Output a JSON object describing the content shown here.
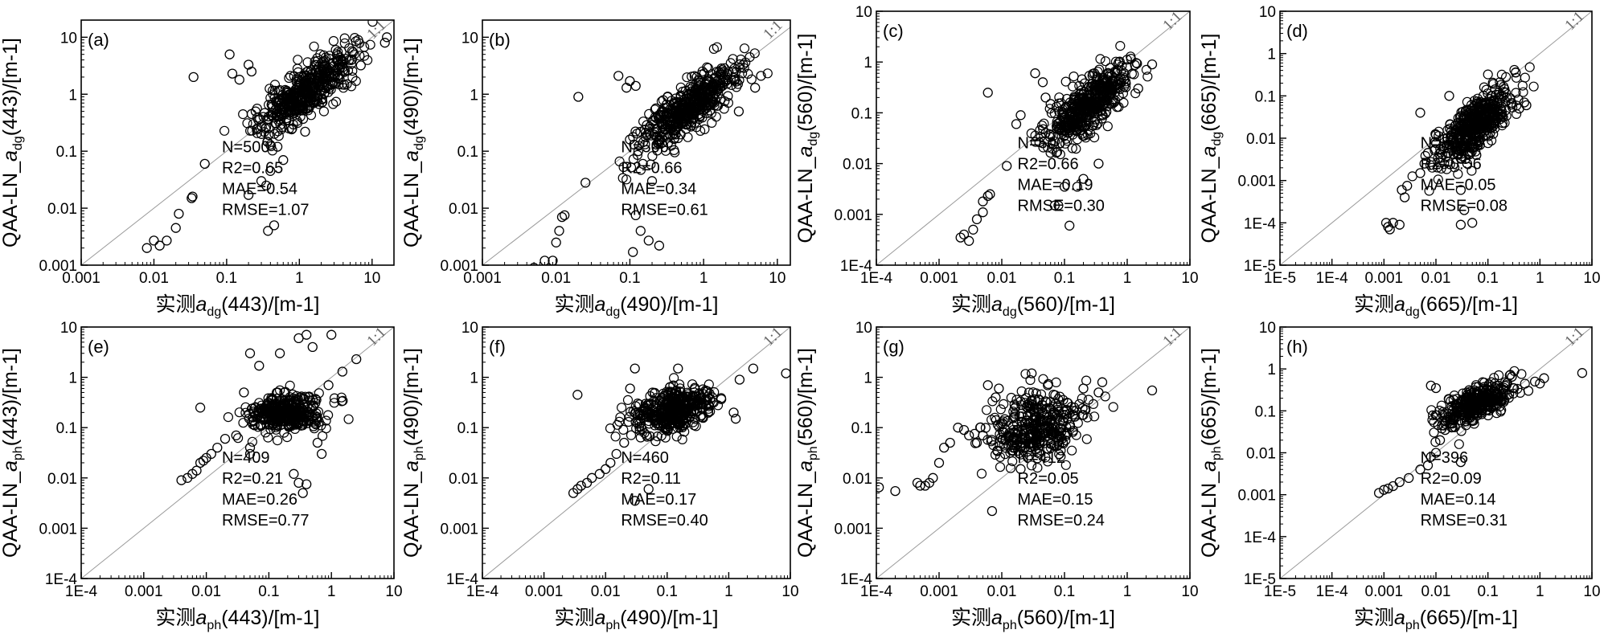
{
  "figure": {
    "n_panels": 8
  },
  "chart_data": [
    {
      "type": "scatter",
      "panel": "(a)",
      "title": "",
      "xscale": "log",
      "yscale": "log",
      "xlim": [
        0.001,
        20
      ],
      "ylim": [
        0.001,
        20
      ],
      "xticks": [
        "0.001",
        "0.01",
        "0.1",
        "1",
        "10"
      ],
      "yticks": [
        "0.001",
        "0.01",
        "0.1",
        "1",
        "10"
      ],
      "xlabel": {
        "pre": "实测",
        "sym": "a",
        "sub": "dg",
        "post": "(443)/[m-1]"
      },
      "ylabel": {
        "pre": "QAA-LN_",
        "sym": "a",
        "sub": "dg",
        "post": "(443)/[m-1]"
      },
      "reference_line": "1:1",
      "stats": [
        "N=500",
        "R2=0.65",
        "MAE=0.54",
        "RMSE=1.07"
      ],
      "cluster": {
        "center": [
          1.2,
          1.1
        ],
        "n": 460,
        "spread_x": 0.32,
        "spread_y": 0.22,
        "slope": 0.9,
        "seed": 11
      },
      "points": [
        [
          0.008,
          0.002
        ],
        [
          0.01,
          0.0027
        ],
        [
          0.012,
          0.0022
        ],
        [
          0.015,
          0.0027
        ],
        [
          0.02,
          0.0045
        ],
        [
          0.022,
          0.008
        ],
        [
          0.033,
          0.015
        ],
        [
          0.034,
          0.016
        ],
        [
          0.05,
          0.06
        ],
        [
          0.035,
          2.0
        ],
        [
          0.11,
          5.0
        ],
        [
          0.12,
          2.3
        ],
        [
          0.15,
          1.8
        ],
        [
          0.2,
          3.3
        ],
        [
          0.22,
          2.5
        ],
        [
          0.2,
          0.017
        ],
        [
          0.3,
          0.03
        ],
        [
          0.35,
          0.025
        ],
        [
          0.4,
          0.045
        ],
        [
          0.45,
          0.005
        ],
        [
          0.37,
          0.004
        ],
        [
          0.25,
          0.5
        ],
        [
          0.6,
          0.07
        ],
        [
          1.2,
          0.22
        ],
        [
          7,
          3.2
        ],
        [
          4.5,
          1.5
        ],
        [
          15,
          8
        ],
        [
          16,
          10
        ],
        [
          0.3,
          0.2
        ],
        [
          0.5,
          0.12
        ],
        [
          0.22,
          0.45
        ]
      ]
    },
    {
      "type": "scatter",
      "panel": "(b)",
      "title": "",
      "xscale": "log",
      "yscale": "log",
      "xlim": [
        0.001,
        15
      ],
      "ylim": [
        0.001,
        20
      ],
      "xticks": [
        "0.001",
        "0.01",
        "0.1",
        "1",
        "10"
      ],
      "yticks": [
        "0.001",
        "0.01",
        "0.1",
        "1",
        "10"
      ],
      "xlabel": {
        "pre": "实测",
        "sym": "a",
        "sub": "dg",
        "post": "(490)/[m-1]"
      },
      "ylabel": {
        "pre": "QAA-LN_",
        "sym": "a",
        "sub": "dg",
        "post": "(490)/[m-1]"
      },
      "reference_line": "1:1",
      "stats": [
        "N=500",
        "R2=0.66",
        "MAE=0.34",
        "RMSE=0.61"
      ],
      "cluster": {
        "center": [
          0.6,
          0.55
        ],
        "n": 460,
        "spread_x": 0.32,
        "spread_y": 0.22,
        "slope": 0.9,
        "seed": 23
      },
      "points": [
        [
          0.005,
          0.0009
        ],
        [
          0.007,
          0.0012
        ],
        [
          0.009,
          0.0012
        ],
        [
          0.01,
          0.0025
        ],
        [
          0.011,
          0.004
        ],
        [
          0.012,
          0.007
        ],
        [
          0.013,
          0.0075
        ],
        [
          0.025,
          0.028
        ],
        [
          0.02,
          0.9
        ],
        [
          0.07,
          2.1
        ],
        [
          0.09,
          1.3
        ],
        [
          0.1,
          1.7
        ],
        [
          0.12,
          1.4
        ],
        [
          0.1,
          0.16
        ],
        [
          0.12,
          0.0075
        ],
        [
          0.14,
          0.004
        ],
        [
          0.11,
          0.0017
        ],
        [
          0.18,
          0.0027
        ],
        [
          0.25,
          0.0022
        ],
        [
          0.13,
          0.1
        ],
        [
          0.15,
          0.06
        ],
        [
          0.2,
          0.03
        ],
        [
          5,
          1.3
        ],
        [
          6,
          2.1
        ],
        [
          3,
          0.5
        ]
      ]
    },
    {
      "type": "scatter",
      "panel": "(c)",
      "title": "",
      "xscale": "log",
      "yscale": "log",
      "xlim": [
        0.0001,
        10
      ],
      "ylim": [
        0.0001,
        10
      ],
      "xticks": [
        "1E-4",
        "0.001",
        "0.01",
        "0.1",
        "1",
        "10"
      ],
      "yticks": [
        "1E-4",
        "0.001",
        "0.01",
        "0.1",
        "1",
        "10"
      ],
      "xlabel": {
        "pre": "实测",
        "sym": "a",
        "sub": "dg",
        "post": "(560)/[m-1]"
      },
      "ylabel": {
        "pre": "QAA-LN_",
        "sym": "a",
        "sub": "dg",
        "post": "(560)/[m-1]"
      },
      "reference_line": "1:1",
      "stats": [
        "N=500",
        "R2=0.66",
        "MAE=0.19",
        "RMSE=0.30"
      ],
      "cluster": {
        "center": [
          0.25,
          0.15
        ],
        "n": 460,
        "spread_x": 0.32,
        "spread_y": 0.25,
        "slope": 0.9,
        "seed": 37
      },
      "points": [
        [
          0.0022,
          0.00035
        ],
        [
          0.0025,
          0.0004
        ],
        [
          0.003,
          0.0003
        ],
        [
          0.0035,
          0.0005
        ],
        [
          0.004,
          0.0008
        ],
        [
          0.005,
          0.0011
        ],
        [
          0.005,
          0.0018
        ],
        [
          0.006,
          0.0023
        ],
        [
          0.0065,
          0.0025
        ],
        [
          0.006,
          0.25
        ],
        [
          0.012,
          0.009
        ],
        [
          0.017,
          0.06
        ],
        [
          0.02,
          0.09
        ],
        [
          0.034,
          0.6
        ],
        [
          0.045,
          0.4
        ],
        [
          0.05,
          0.2
        ],
        [
          0.06,
          0.15
        ],
        [
          0.05,
          0.04
        ],
        [
          0.07,
          0.0015
        ],
        [
          0.08,
          0.0015
        ],
        [
          0.12,
          0.0006
        ],
        [
          0.1,
          0.0035
        ],
        [
          0.16,
          0.0035
        ],
        [
          0.2,
          0.005
        ],
        [
          0.35,
          0.01
        ],
        [
          0.3,
          0.6
        ],
        [
          2.5,
          0.9
        ],
        [
          1.5,
          0.3
        ]
      ]
    },
    {
      "type": "scatter",
      "panel": "(d)",
      "title": "",
      "xscale": "log",
      "yscale": "log",
      "xlim": [
        1e-05,
        10
      ],
      "ylim": [
        1e-05,
        10
      ],
      "xticks": [
        "1E-5",
        "1E-4",
        "0.001",
        "0.01",
        "0.1",
        "1",
        "10"
      ],
      "yticks": [
        "1E-5",
        "1E-4",
        "0.001",
        "0.01",
        "0.1",
        "1",
        "10"
      ],
      "xlabel": {
        "pre": "实测",
        "sym": "a",
        "sub": "dg",
        "post": "(665)/[m-1]"
      },
      "ylabel": {
        "pre": "QAA-LN_",
        "sym": "a",
        "sub": "dg",
        "post": "(665)/[m-1]"
      },
      "reference_line": "1:1",
      "stats": [
        "N=500",
        "R2=0.56",
        "MAE=0.05",
        "RMSE=0.08"
      ],
      "cluster": {
        "center": [
          0.055,
          0.02
        ],
        "n": 460,
        "spread_x": 0.35,
        "spread_y": 0.3,
        "slope": 0.9,
        "seed": 53
      },
      "points": [
        [
          0.0011,
          0.0001
        ],
        [
          0.0012,
          8e-05
        ],
        [
          0.0013,
          7e-05
        ],
        [
          0.0015,
          0.0001
        ],
        [
          0.002,
          9e-05
        ],
        [
          0.0022,
          0.0006
        ],
        [
          0.0025,
          0.0004
        ],
        [
          0.0028,
          0.00075
        ],
        [
          0.005,
          0.0015
        ],
        [
          0.006,
          0.0025
        ],
        [
          0.005,
          0.04
        ],
        [
          0.007,
          0.0045
        ],
        [
          0.01,
          0.012
        ],
        [
          0.018,
          0.1
        ],
        [
          0.03,
          0.0006
        ],
        [
          0.035,
          0.0002
        ],
        [
          0.03,
          9e-05
        ],
        [
          0.05,
          0.0001
        ],
        [
          0.04,
          0.0025
        ],
        [
          0.06,
          0.004
        ],
        [
          0.5,
          0.07
        ],
        [
          0.4,
          0.05
        ],
        [
          0.55,
          0.06
        ]
      ]
    },
    {
      "type": "scatter",
      "panel": "(e)",
      "title": "",
      "xscale": "log",
      "yscale": "log",
      "xlim": [
        0.0001,
        10
      ],
      "ylim": [
        0.0001,
        10
      ],
      "xticks": [
        "1E-4",
        "0.001",
        "0.01",
        "0.1",
        "1",
        "10"
      ],
      "yticks": [
        "1E-4",
        "0.001",
        "0.01",
        "0.1",
        "1",
        "10"
      ],
      "xlabel": {
        "pre": "实测",
        "sym": "a",
        "sub": "ph",
        "post": "(443)/[m-1]"
      },
      "ylabel": {
        "pre": "QAA-LN_",
        "sym": "a",
        "sub": "ph",
        "post": "(443)/[m-1]"
      },
      "reference_line": "1:1",
      "stats": [
        "N=409",
        "R2=0.21",
        "MAE=0.26",
        "RMSE=0.77"
      ],
      "cluster": {
        "center": [
          0.18,
          0.2
        ],
        "n": 370,
        "spread_x": 0.3,
        "spread_y": 0.18,
        "slope": 0.1,
        "seed": 71
      },
      "points": [
        [
          0.004,
          0.009
        ],
        [
          0.005,
          0.01
        ],
        [
          0.006,
          0.012
        ],
        [
          0.007,
          0.014
        ],
        [
          0.008,
          0.02
        ],
        [
          0.009,
          0.022
        ],
        [
          0.01,
          0.025
        ],
        [
          0.012,
          0.03
        ],
        [
          0.015,
          0.04
        ],
        [
          0.02,
          0.06
        ],
        [
          0.03,
          0.07
        ],
        [
          0.04,
          0.5
        ],
        [
          0.05,
          0.04
        ],
        [
          0.05,
          0.03
        ],
        [
          0.008,
          0.25
        ],
        [
          0.05,
          3.0
        ],
        [
          0.07,
          1.7
        ],
        [
          0.15,
          3.0
        ],
        [
          0.3,
          6.0
        ],
        [
          0.4,
          7.0
        ],
        [
          0.5,
          4.0
        ],
        [
          1.0,
          7.0
        ],
        [
          1.5,
          1.3
        ],
        [
          2.5,
          2.3
        ],
        [
          0.25,
          0.012
        ],
        [
          0.3,
          0.008
        ],
        [
          0.35,
          0.005
        ],
        [
          0.4,
          0.0075
        ],
        [
          0.6,
          0.05
        ],
        [
          0.7,
          0.03
        ],
        [
          0.9,
          0.7
        ]
      ]
    },
    {
      "type": "scatter",
      "panel": "(f)",
      "title": "",
      "xscale": "log",
      "yscale": "log",
      "xlim": [
        0.0001,
        10
      ],
      "ylim": [
        0.0001,
        10
      ],
      "xticks": [
        "1E-4",
        "0.001",
        "0.01",
        "0.1",
        "1",
        "10"
      ],
      "yticks": [
        "1E-4",
        "0.001",
        "0.01",
        "0.1",
        "1",
        "10"
      ],
      "xlabel": {
        "pre": "实测",
        "sym": "a",
        "sub": "ph",
        "post": "(490)/[m-1]"
      },
      "ylabel": {
        "pre": "QAA-LN_",
        "sym": "a",
        "sub": "ph",
        "post": "(490)/[m-1]"
      },
      "reference_line": "1:1",
      "stats": [
        "N=460",
        "R2=0.11",
        "MAE=0.17",
        "RMSE=0.40"
      ],
      "cluster": {
        "center": [
          0.12,
          0.22
        ],
        "n": 420,
        "spread_x": 0.32,
        "spread_y": 0.2,
        "slope": 0.3,
        "seed": 89
      },
      "points": [
        [
          0.003,
          0.005
        ],
        [
          0.0035,
          0.006
        ],
        [
          0.004,
          0.007
        ],
        [
          0.005,
          0.008
        ],
        [
          0.006,
          0.01
        ],
        [
          0.008,
          0.012
        ],
        [
          0.01,
          0.015
        ],
        [
          0.012,
          0.02
        ],
        [
          0.015,
          0.03
        ],
        [
          0.02,
          0.05
        ],
        [
          0.0035,
          0.45
        ],
        [
          0.03,
          0.0035
        ],
        [
          0.05,
          0.006
        ],
        [
          0.025,
          0.6
        ],
        [
          0.03,
          1.5
        ],
        [
          0.15,
          1.5
        ],
        [
          8.5,
          1.2
        ],
        [
          2.5,
          1.5
        ],
        [
          1.5,
          0.9
        ],
        [
          1.2,
          0.2
        ],
        [
          1.3,
          0.15
        ]
      ]
    },
    {
      "type": "scatter",
      "panel": "(g)",
      "title": "",
      "xscale": "log",
      "yscale": "log",
      "xlim": [
        0.0001,
        10
      ],
      "ylim": [
        0.0001,
        10
      ],
      "xticks": [
        "1E-4",
        "0.001",
        "0.01",
        "0.1",
        "1",
        "10"
      ],
      "yticks": [
        "1E-4",
        "0.001",
        "0.01",
        "0.1",
        "1",
        "10"
      ],
      "xlabel": {
        "pre": "实测",
        "sym": "a",
        "sub": "ph",
        "post": "(560)/[m-1]"
      },
      "ylabel": {
        "pre": "QAA-LN_",
        "sym": "a",
        "sub": "ph",
        "post": "(560)/[m-1]"
      },
      "reference_line": "1:1",
      "stats": [
        "N=412",
        "R2=0.05",
        "MAE=0.15",
        "RMSE=0.24"
      ],
      "cluster": {
        "center": [
          0.035,
          0.1
        ],
        "n": 370,
        "spread_x": 0.38,
        "spread_y": 0.35,
        "slope": 0.15,
        "seed": 97
      },
      "points": [
        [
          0.00011,
          0.0065
        ],
        [
          0.0002,
          0.0055
        ],
        [
          0.00045,
          0.008
        ],
        [
          0.0005,
          0.007
        ],
        [
          0.0006,
          0.007
        ],
        [
          0.0007,
          0.008
        ],
        [
          0.0008,
          0.01
        ],
        [
          0.001,
          0.02
        ],
        [
          0.0012,
          0.04
        ],
        [
          0.0015,
          0.05
        ],
        [
          0.002,
          0.1
        ],
        [
          0.0025,
          0.09
        ],
        [
          0.003,
          0.07
        ],
        [
          0.004,
          0.05
        ],
        [
          0.005,
          0.07
        ],
        [
          0.007,
          0.0022
        ],
        [
          0.009,
          0.6
        ],
        [
          0.006,
          0.7
        ],
        [
          0.008,
          0.4
        ],
        [
          0.2,
          0.6
        ],
        [
          0.35,
          0.5
        ],
        [
          0.4,
          0.8
        ],
        [
          2.5,
          0.55
        ],
        [
          0.03,
          1.2
        ],
        [
          0.02,
          0.015
        ]
      ]
    },
    {
      "type": "scatter",
      "panel": "(h)",
      "title": "",
      "xscale": "log",
      "yscale": "log",
      "xlim": [
        1e-05,
        10
      ],
      "ylim": [
        1e-05,
        10
      ],
      "xticks": [
        "1E-5",
        "1E-4",
        "0.001",
        "0.01",
        "0.1",
        "1",
        "10"
      ],
      "yticks": [
        "1E-5",
        "1E-4",
        "0.001",
        "0.01",
        "0.1",
        "1",
        "10"
      ],
      "xlabel": {
        "pre": "实测",
        "sym": "a",
        "sub": "ph",
        "post": "(665)/[m-1]"
      },
      "ylabel": {
        "pre": "QAA-LN_",
        "sym": "a",
        "sub": "ph",
        "post": "(665)/[m-1]"
      },
      "reference_line": "1:1",
      "stats": [
        "N=396",
        "R2=0.09",
        "MAE=0.14",
        "RMSE=0.31"
      ],
      "cluster": {
        "center": [
          0.06,
          0.15
        ],
        "n": 360,
        "spread_x": 0.35,
        "spread_y": 0.2,
        "slope": 0.5,
        "seed": 113
      },
      "points": [
        [
          0.0008,
          0.0011
        ],
        [
          0.001,
          0.0013
        ],
        [
          0.0012,
          0.0014
        ],
        [
          0.0015,
          0.0016
        ],
        [
          0.002,
          0.002
        ],
        [
          0.003,
          0.0025
        ],
        [
          0.005,
          0.004
        ],
        [
          0.007,
          0.005
        ],
        [
          0.008,
          0.008
        ],
        [
          0.01,
          0.01
        ],
        [
          0.012,
          0.02
        ],
        [
          0.015,
          0.035
        ],
        [
          0.02,
          0.05
        ],
        [
          0.008,
          0.4
        ],
        [
          0.01,
          0.35
        ],
        [
          0.03,
          0.006
        ],
        [
          0.8,
          0.5
        ],
        [
          1.0,
          0.45
        ],
        [
          1.2,
          0.6
        ],
        [
          6.5,
          0.8
        ],
        [
          0.6,
          0.3
        ]
      ]
    }
  ]
}
